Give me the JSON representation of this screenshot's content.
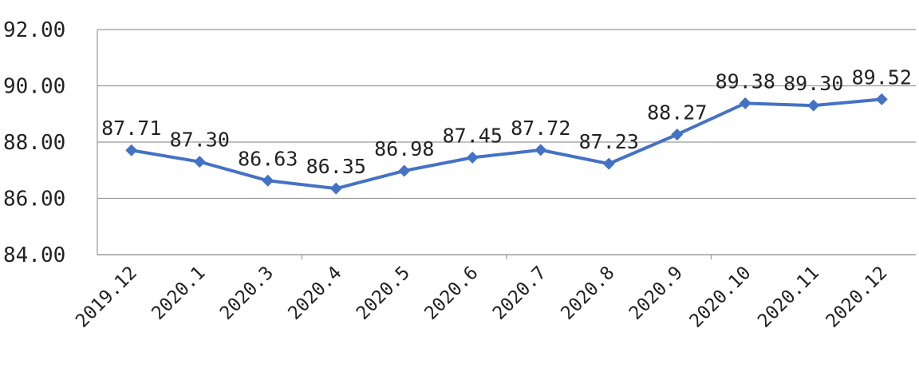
{
  "chart_data": {
    "type": "line",
    "title": "",
    "xlabel": "",
    "ylabel": "",
    "categories": [
      "2019.12",
      "2020.1",
      "2020.3",
      "2020.4",
      "2020.5",
      "2020.6",
      "2020.7",
      "2020.8",
      "2020.9",
      "2020.10",
      "2020.11",
      "2020.12"
    ],
    "series": [
      {
        "values": [
          87.71,
          87.3,
          86.63,
          86.35,
          86.98,
          87.45,
          87.72,
          87.23,
          88.27,
          89.38,
          89.3,
          89.52
        ],
        "data_labels": [
          "87.71",
          "87.30",
          "86.63",
          "86.35",
          "86.98",
          "87.45",
          "87.72",
          "87.23",
          "88.27",
          "89.38",
          "89.30",
          "89.52"
        ],
        "color": "#4472C4",
        "marker": "diamond"
      }
    ],
    "ylim": [
      84,
      92
    ],
    "yticks": [
      "84.00",
      "86.00",
      "88.00",
      "90.00",
      "92.00"
    ],
    "grid": true,
    "legend": "none"
  }
}
